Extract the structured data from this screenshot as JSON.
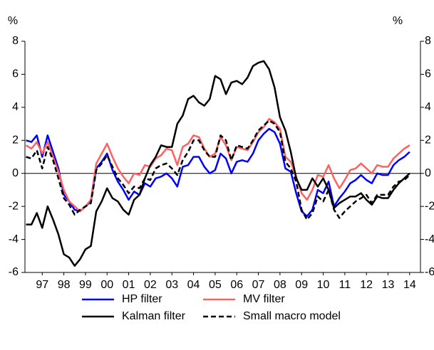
{
  "chart_data": {
    "type": "line",
    "ylabel": "%",
    "y2label": "%",
    "x": [
      1996.75,
      1997,
      1997.25,
      1997.5,
      1997.75,
      1998,
      1998.25,
      1998.5,
      1998.75,
      1999,
      1999.25,
      1999.5,
      1999.75,
      2000,
      2000.25,
      2000.5,
      2000.75,
      2001,
      2001.25,
      2001.5,
      2001.75,
      2002,
      2002.25,
      2002.5,
      2002.75,
      2003,
      2003.25,
      2003.5,
      2003.75,
      2004,
      2004.25,
      2004.5,
      2004.75,
      2005,
      2005.25,
      2005.5,
      2005.75,
      2006,
      2006.25,
      2006.5,
      2006.75,
      2007,
      2007.25,
      2007.5,
      2007.75,
      2008,
      2008.25,
      2008.5,
      2008.75,
      2009,
      2009.25,
      2009.5,
      2009.75,
      2010,
      2010.25,
      2010.5,
      2010.75,
      2011,
      2011.25,
      2011.5,
      2011.75,
      2012,
      2012.25,
      2012.5,
      2012.75,
      2013,
      2013.25,
      2013.5,
      2013.75,
      2014,
      2014.25,
      2014.5
    ],
    "xlim": [
      1996.7,
      2015.0
    ],
    "xticks": [
      {
        "value": 1997.5,
        "label": "97"
      },
      {
        "value": 1998.5,
        "label": "98"
      },
      {
        "value": 1999.5,
        "label": "99"
      },
      {
        "value": 2000.5,
        "label": "00"
      },
      {
        "value": 2001.5,
        "label": "01"
      },
      {
        "value": 2002.5,
        "label": "02"
      },
      {
        "value": 2003.5,
        "label": "03"
      },
      {
        "value": 2004.5,
        "label": "04"
      },
      {
        "value": 2005.5,
        "label": "05"
      },
      {
        "value": 2006.5,
        "label": "06"
      },
      {
        "value": 2007.5,
        "label": "07"
      },
      {
        "value": 2008.5,
        "label": "08"
      },
      {
        "value": 2009.5,
        "label": "09"
      },
      {
        "value": 2010.5,
        "label": "10"
      },
      {
        "value": 2011.5,
        "label": "11"
      },
      {
        "value": 2012.5,
        "label": "12"
      },
      {
        "value": 2013.5,
        "label": "13"
      },
      {
        "value": 2014.5,
        "label": "14"
      }
    ],
    "ylim": [
      -6,
      8
    ],
    "yticks": [
      -6,
      -4,
      -2,
      0,
      2,
      4,
      6,
      8
    ],
    "y2lim": [
      -6,
      8
    ],
    "y2ticks": [
      -6,
      -4,
      -2,
      0,
      2,
      4,
      6,
      8
    ],
    "series": [
      {
        "name": "HP filter",
        "color": "#0000ff",
        "dashed": false,
        "values": [
          2.0,
          1.9,
          2.3,
          1.0,
          2.3,
          1.3,
          0.3,
          -1.3,
          -1.7,
          -2.2,
          -2.3,
          -2.0,
          -1.7,
          0.3,
          0.7,
          1.2,
          0.2,
          -0.5,
          -1.0,
          -1.6,
          -1.1,
          -1.3,
          -0.6,
          -0.8,
          -0.3,
          -0.2,
          0.0,
          -0.3,
          -0.8,
          0.4,
          0.5,
          1.0,
          1.0,
          0.4,
          0.0,
          0.2,
          1.2,
          0.9,
          0.0,
          0.7,
          0.8,
          0.7,
          1.2,
          2.0,
          2.4,
          2.7,
          2.5,
          1.8,
          0.3,
          0.1,
          -1.2,
          -2.3,
          -2.6,
          -2.2,
          -1.0,
          -1.2,
          -0.5,
          -2.0,
          -1.5,
          -1.1,
          -0.6,
          -0.4,
          -0.1,
          -0.4,
          -0.6,
          0.0,
          -0.1,
          -0.1,
          0.5,
          0.8,
          1.0,
          1.3
        ]
      },
      {
        "name": "MV filter",
        "color": "#ff6060",
        "dashed": false,
        "values": [
          1.7,
          1.5,
          1.9,
          1.2,
          1.9,
          1.0,
          0.1,
          -1.0,
          -1.7,
          -2.0,
          -2.3,
          -2.0,
          -1.6,
          0.6,
          1.2,
          1.8,
          1.0,
          0.3,
          -0.2,
          -0.6,
          0.0,
          -0.1,
          0.5,
          0.4,
          0.9,
          1.1,
          1.5,
          1.4,
          0.5,
          1.6,
          1.8,
          2.3,
          2.2,
          1.5,
          1.0,
          1.2,
          2.2,
          1.7,
          0.8,
          1.6,
          1.5,
          1.4,
          1.9,
          2.5,
          2.8,
          3.3,
          3.1,
          2.7,
          1.0,
          0.7,
          -0.2,
          -1.2,
          -1.6,
          -1.0,
          -0.1,
          -0.2,
          0.5,
          -0.3,
          -0.9,
          -0.4,
          0.2,
          0.3,
          0.6,
          0.3,
          0.0,
          0.5,
          0.4,
          0.4,
          0.9,
          1.2,
          1.5,
          1.7
        ]
      },
      {
        "name": "Kalman filter",
        "color": "#000000",
        "dashed": false,
        "values": [
          -3.1,
          -3.1,
          -2.4,
          -3.3,
          -2.0,
          -2.8,
          -3.7,
          -4.9,
          -5.1,
          -5.6,
          -5.2,
          -4.6,
          -4.4,
          -2.3,
          -1.7,
          -0.9,
          -1.5,
          -1.7,
          -2.2,
          -2.5,
          -1.6,
          -1.3,
          -0.3,
          0.5,
          1.0,
          1.7,
          1.6,
          1.6,
          3.0,
          3.5,
          4.5,
          4.7,
          4.3,
          4.1,
          4.5,
          5.9,
          5.7,
          4.8,
          5.5,
          5.6,
          5.4,
          5.8,
          6.5,
          6.7,
          6.8,
          6.3,
          5.2,
          3.4,
          2.6,
          1.3,
          -0.3,
          -1.0,
          -1.0,
          -0.3,
          -0.8,
          -0.3,
          -1.0,
          -2.1,
          -1.8,
          -1.6,
          -1.4,
          -1.4,
          -1.2,
          -1.6,
          -1.9,
          -1.4,
          -1.5,
          -1.5,
          -1.0,
          -0.6,
          -0.3,
          0.0
        ]
      },
      {
        "name": "Small macro model",
        "color": "#000000",
        "dashed": true,
        "values": [
          1.0,
          0.9,
          1.4,
          0.3,
          1.6,
          0.8,
          -0.3,
          -1.5,
          -1.9,
          -2.5,
          -2.2,
          -2.0,
          -1.8,
          0.2,
          0.6,
          1.1,
          0.4,
          -0.3,
          -0.7,
          -1.2,
          -0.8,
          -0.9,
          -0.3,
          -0.4,
          0.3,
          0.5,
          0.6,
          0.3,
          -0.1,
          0.8,
          1.3,
          2.0,
          2.0,
          1.4,
          1.0,
          1.0,
          2.3,
          2.0,
          0.8,
          1.7,
          1.6,
          1.5,
          2.0,
          2.6,
          2.9,
          3.2,
          3.0,
          2.5,
          0.7,
          0.3,
          -0.5,
          -2.2,
          -2.8,
          -2.4,
          -1.4,
          -1.7,
          -1.0,
          -2.2,
          -2.7,
          -2.3,
          -2.0,
          -1.7,
          -1.5,
          -1.3,
          -1.8,
          -1.3,
          -1.3,
          -1.3,
          -0.8,
          -0.5,
          -0.4,
          -0.1
        ]
      }
    ]
  }
}
